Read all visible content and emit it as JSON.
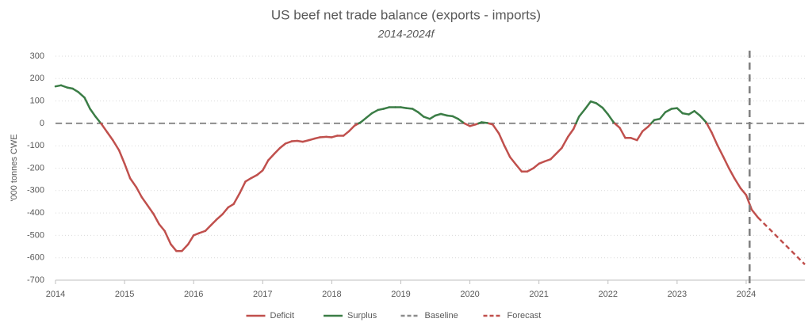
{
  "chart_data": {
    "type": "line",
    "title": "US beef net trade balance (exports - imports)",
    "subtitle": "2014-2024f",
    "y_label": "'000 tonnes CWE",
    "x": [
      2014.0,
      2014.08,
      2014.17,
      2014.25,
      2014.33,
      2014.42,
      2014.5,
      2014.58,
      2014.67,
      2014.75,
      2014.83,
      2014.92,
      2015.0,
      2015.08,
      2015.17,
      2015.25,
      2015.33,
      2015.42,
      2015.5,
      2015.58,
      2015.67,
      2015.75,
      2015.83,
      2015.92,
      2016.0,
      2016.08,
      2016.17,
      2016.25,
      2016.33,
      2016.42,
      2016.5,
      2016.58,
      2016.67,
      2016.75,
      2016.83,
      2016.92,
      2017.0,
      2017.08,
      2017.17,
      2017.25,
      2017.33,
      2017.42,
      2017.5,
      2017.58,
      2017.67,
      2017.75,
      2017.83,
      2017.92,
      2018.0,
      2018.08,
      2018.17,
      2018.25,
      2018.33,
      2018.42,
      2018.5,
      2018.58,
      2018.67,
      2018.75,
      2018.83,
      2018.92,
      2019.0,
      2019.08,
      2019.17,
      2019.25,
      2019.33,
      2019.42,
      2019.5,
      2019.58,
      2019.67,
      2019.75,
      2019.83,
      2019.92,
      2020.0,
      2020.08,
      2020.17,
      2020.25,
      2020.33,
      2020.42,
      2020.5,
      2020.58,
      2020.67,
      2020.75,
      2020.83,
      2020.92,
      2021.0,
      2021.08,
      2021.17,
      2021.25,
      2021.33,
      2021.42,
      2021.5,
      2021.58,
      2021.67,
      2021.75,
      2021.83,
      2021.92,
      2022.0,
      2022.08,
      2022.17,
      2022.25,
      2022.33,
      2022.42,
      2022.5,
      2022.58,
      2022.67,
      2022.75,
      2022.83,
      2022.92,
      2023.0,
      2023.08,
      2023.17,
      2023.25,
      2023.33,
      2023.42,
      2023.5,
      2023.58,
      2023.67,
      2023.75,
      2023.83,
      2023.92,
      2024.0,
      2024.08,
      2024.17
    ],
    "values": [
      165,
      170,
      160,
      155,
      140,
      115,
      65,
      30,
      -5,
      -40,
      -75,
      -120,
      -180,
      -245,
      -285,
      -330,
      -365,
      -405,
      -450,
      -480,
      -540,
      -570,
      -570,
      -540,
      -500,
      -490,
      -480,
      -455,
      -430,
      -405,
      -375,
      -360,
      -310,
      -260,
      -245,
      -230,
      -210,
      -165,
      -135,
      -110,
      -90,
      -80,
      -78,
      -82,
      -75,
      -68,
      -62,
      -60,
      -62,
      -55,
      -55,
      -35,
      -10,
      5,
      25,
      45,
      60,
      65,
      72,
      72,
      72,
      68,
      65,
      50,
      30,
      20,
      35,
      42,
      35,
      32,
      20,
      0,
      -12,
      -5,
      5,
      2,
      -5,
      -45,
      -100,
      -150,
      -185,
      -215,
      -215,
      -200,
      -180,
      -170,
      -160,
      -135,
      -110,
      -60,
      -25,
      30,
      65,
      98,
      90,
      70,
      40,
      5,
      -20,
      -65,
      -65,
      -75,
      -35,
      -15,
      15,
      20,
      50,
      65,
      68,
      45,
      40,
      55,
      35,
      5,
      -40,
      -95,
      -150,
      -200,
      -245,
      -290,
      -320,
      -385,
      -420
    ],
    "forecast": {
      "x": [
        2024.17,
        2024.85
      ],
      "values": [
        -420,
        -630
      ]
    },
    "forecast_start": 2024.05,
    "baseline": 0,
    "legend": [
      {
        "name": "Deficit",
        "color": "#c0504d",
        "dash": false
      },
      {
        "name": "Surplus",
        "color": "#3b7d46",
        "dash": false
      },
      {
        "name": "Baseline",
        "color": "#8c8c8c",
        "dash": true
      },
      {
        "name": "Forecast",
        "color": "#c0504d",
        "dash": true
      }
    ],
    "xlim": [
      2014,
      2024.85
    ],
    "xticks": [
      2014,
      2015,
      2016,
      2017,
      2018,
      2019,
      2020,
      2021,
      2022,
      2023,
      2024
    ],
    "ylim": [
      -700,
      300
    ],
    "yticks": [
      -700,
      -600,
      -500,
      -400,
      -300,
      -200,
      -100,
      0,
      100,
      200,
      300
    ],
    "grid": true
  }
}
